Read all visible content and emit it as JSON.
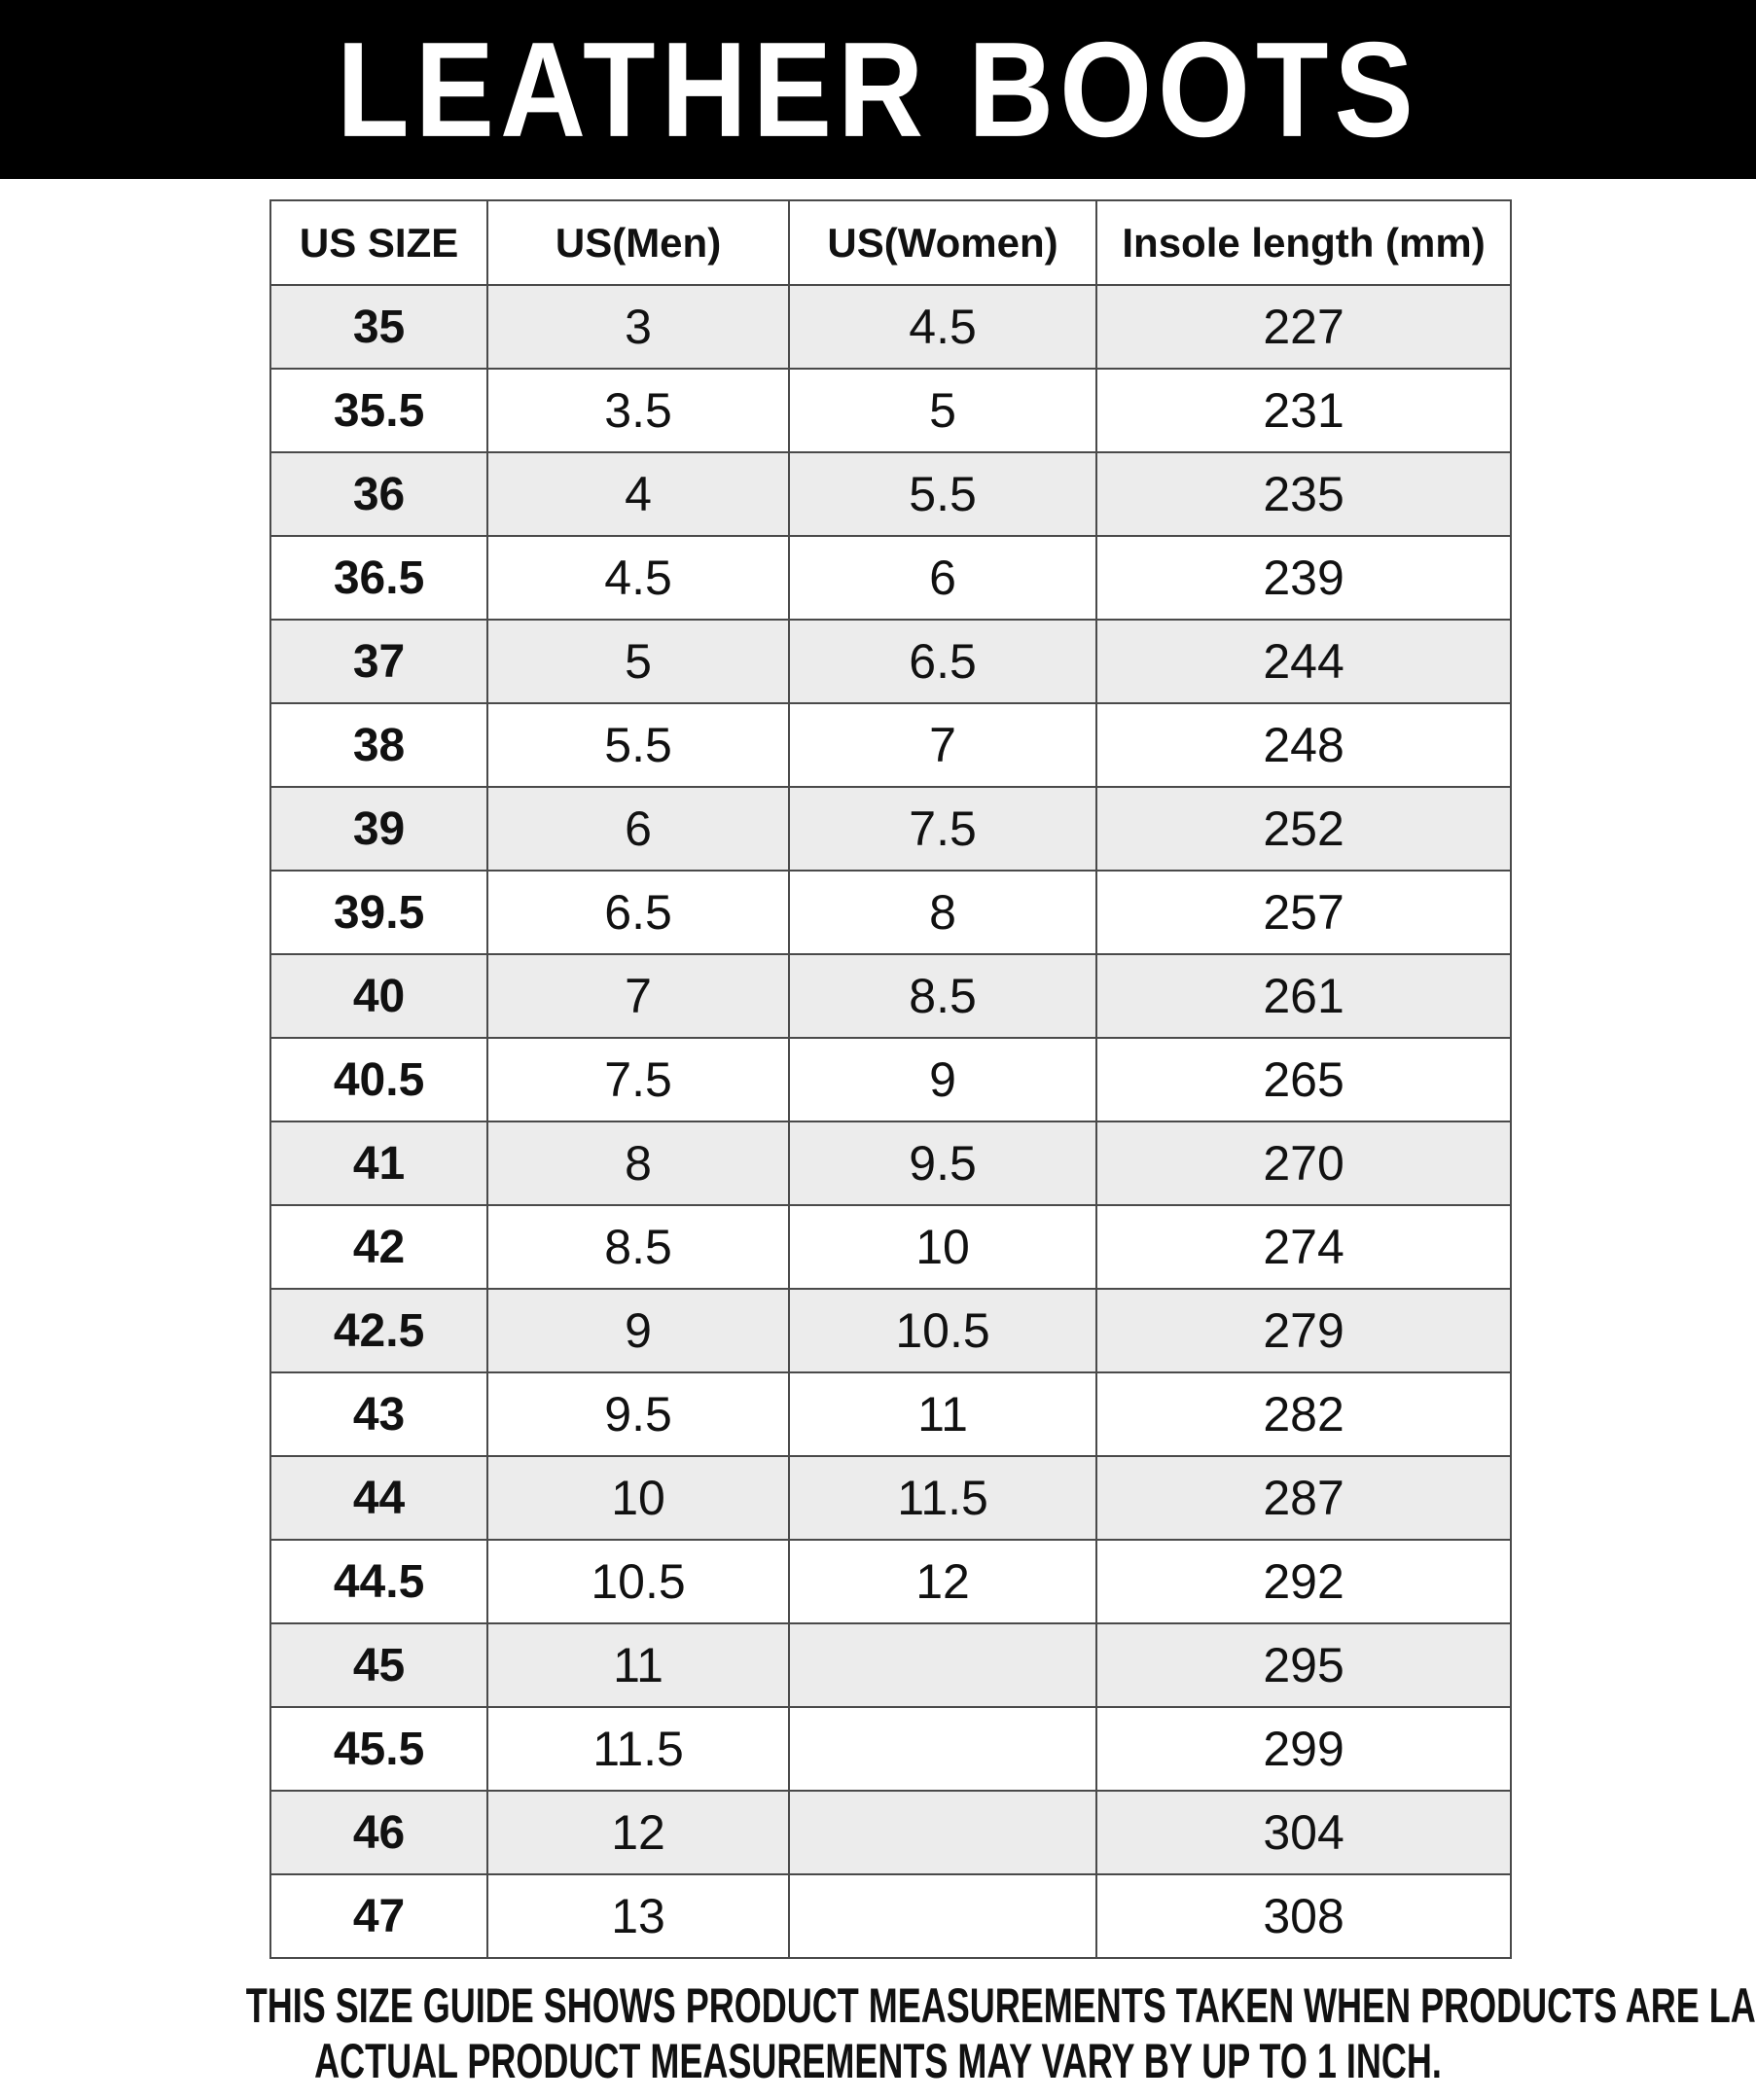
{
  "title": "LEATHER BOOTS",
  "colors": {
    "banner_background": "#000000",
    "banner_text": "#ffffff",
    "row_alternate": "#ececec",
    "table_border": "#4a4a4a",
    "text": "#111111"
  },
  "table": {
    "columns": [
      "US SIZE",
      "US(Men)",
      "US(Women)",
      "Insole length (mm)"
    ],
    "rows": [
      [
        "35",
        "3",
        "4.5",
        "227"
      ],
      [
        "35.5",
        "3.5",
        "5",
        "231"
      ],
      [
        "36",
        "4",
        "5.5",
        "235"
      ],
      [
        "36.5",
        "4.5",
        "6",
        "239"
      ],
      [
        "37",
        "5",
        "6.5",
        "244"
      ],
      [
        "38",
        "5.5",
        "7",
        "248"
      ],
      [
        "39",
        "6",
        "7.5",
        "252"
      ],
      [
        "39.5",
        "6.5",
        "8",
        "257"
      ],
      [
        "40",
        "7",
        "8.5",
        "261"
      ],
      [
        "40.5",
        "7.5",
        "9",
        "265"
      ],
      [
        "41",
        "8",
        "9.5",
        "270"
      ],
      [
        "42",
        "8.5",
        "10",
        "274"
      ],
      [
        "42.5",
        "9",
        "10.5",
        "279"
      ],
      [
        "43",
        "9.5",
        "11",
        "282"
      ],
      [
        "44",
        "10",
        "11.5",
        "287"
      ],
      [
        "44.5",
        "10.5",
        "12",
        "292"
      ],
      [
        "45",
        "11",
        "",
        "295"
      ],
      [
        "45.5",
        "11.5",
        "",
        "299"
      ],
      [
        "46",
        "12",
        "",
        "304"
      ],
      [
        "47",
        "13",
        "",
        "308"
      ]
    ]
  },
  "footer": {
    "line1": "THIS SIZE GUIDE SHOWS PRODUCT MEASUREMENTS TAKEN WHEN PRODUCTS ARE LAID",
    "line2": "ACTUAL PRODUCT MEASUREMENTS MAY VARY BY UP TO 1 INCH."
  }
}
